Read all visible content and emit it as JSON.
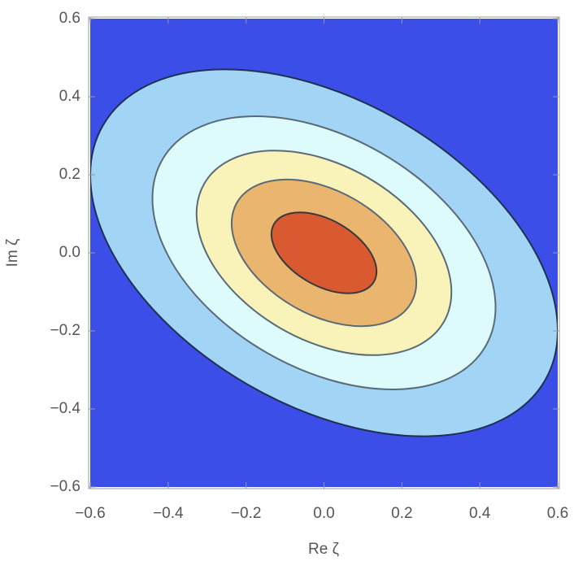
{
  "chart_data": {
    "type": "contour",
    "xlabel": "Re ζ",
    "ylabel": "Im ζ",
    "xlim": [
      -0.6,
      0.6
    ],
    "ylim": [
      -0.6,
      0.6
    ],
    "xticks": [
      {
        "value": -0.6,
        "label": "−0.6"
      },
      {
        "value": -0.4,
        "label": "−0.4"
      },
      {
        "value": -0.2,
        "label": "−0.2"
      },
      {
        "value": 0,
        "label": "0.0"
      },
      0.2,
      0.4,
      0.6
    ],
    "yticks": [
      {
        "value": -0.6,
        "label": "−0.6"
      },
      {
        "value": -0.4,
        "label": "−0.4"
      },
      {
        "value": -0.2,
        "label": "−0.2"
      },
      {
        "value": 0,
        "label": "0.0"
      },
      0.2,
      0.4,
      0.6
    ],
    "background": "#3b4fe8",
    "contours": [
      {
        "center": [
          0,
          0
        ],
        "rx": 0.655,
        "ry": 0.39,
        "angle": -30,
        "color": "#a2d5f5",
        "stroke": "#1f3050"
      },
      {
        "center": [
          0,
          0
        ],
        "rx": 0.479,
        "ry": 0.295,
        "angle": -30,
        "color": "#ddfbfb",
        "stroke": "#5a6a78"
      },
      {
        "center": [
          0,
          0
        ],
        "rx": 0.355,
        "ry": 0.223,
        "angle": -30,
        "color": "#faf3b9",
        "stroke": "#5a6a78"
      },
      {
        "center": [
          0,
          0
        ],
        "rx": 0.258,
        "ry": 0.158,
        "angle": -30,
        "color": "#e9b56f",
        "stroke": "#5a6a78"
      },
      {
        "center": [
          0,
          0
        ],
        "rx": 0.148,
        "ry": 0.084,
        "angle": -30,
        "color": "#d95a31",
        "stroke": "#3a3a3a"
      }
    ]
  }
}
